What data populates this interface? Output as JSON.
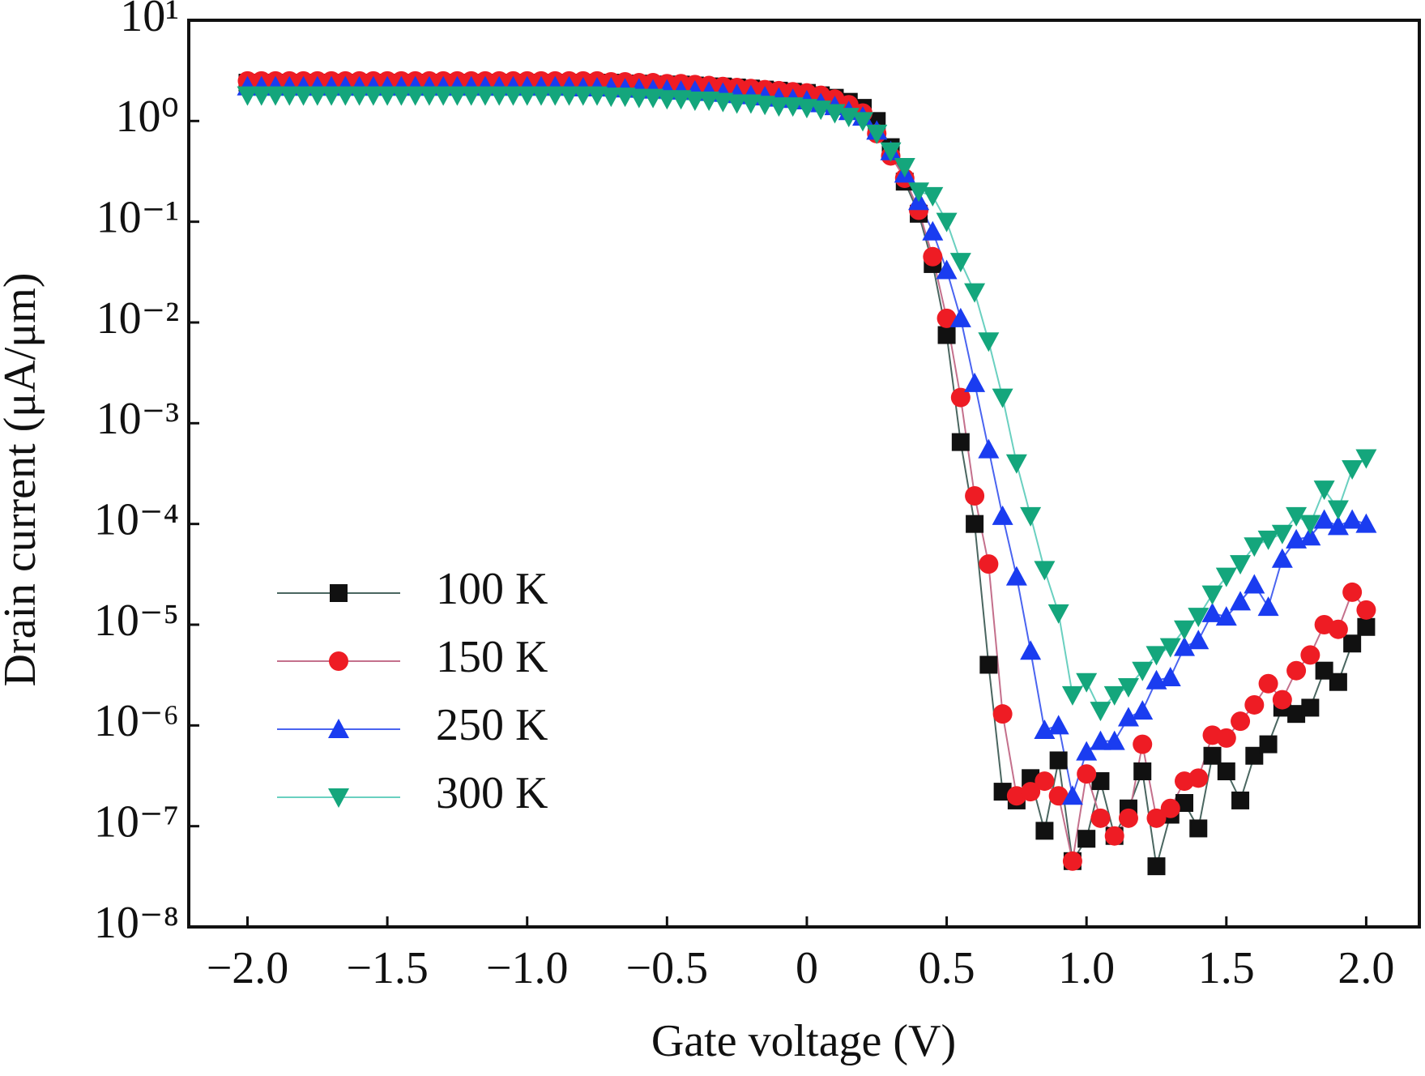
{
  "chart_data": {
    "type": "line",
    "x_label": "Gate voltage (V)",
    "y_label": "Drain current (μA/μm)",
    "log_y": true,
    "grid": false,
    "legend_position": "lower-left",
    "xlim": [
      -2.21,
      2.19
    ],
    "ylim": [
      1e-08,
      10
    ],
    "xticks": [
      {
        "value": -2,
        "label": "−2.0"
      },
      {
        "value": -1.5,
        "label": "−1.5"
      },
      {
        "value": -1,
        "label": "−1.0"
      },
      {
        "value": -0.5,
        "label": "−0.5"
      },
      0,
      0.5,
      {
        "value": 1,
        "label": "1.0"
      },
      1.5,
      {
        "value": 2,
        "label": "2.0"
      }
    ],
    "yticks": [
      {
        "value": 1e-08,
        "label": "10⁻⁸"
      },
      {
        "value": 1e-07,
        "label": "10⁻⁷"
      },
      {
        "value": 1e-06,
        "label": "10⁻⁶"
      },
      {
        "value": 1e-05,
        "label": "10⁻⁵"
      },
      {
        "value": 0.0001,
        "label": "10⁻⁴"
      },
      {
        "value": 0.001,
        "label": "10⁻³"
      },
      {
        "value": 0.01,
        "label": "10⁻²"
      },
      {
        "value": 0.1,
        "label": "10⁻¹"
      },
      {
        "value": 1,
        "label": "10⁰"
      },
      {
        "value": 10,
        "label": "10¹"
      }
    ],
    "x": [
      -2,
      -1.95,
      -1.9,
      -1.85,
      -1.8,
      -1.75,
      -1.7,
      -1.65,
      -1.6,
      -1.55,
      -1.5,
      -1.45,
      -1.4,
      -1.35,
      -1.3,
      -1.25,
      -1.2,
      -1.15,
      -1.1,
      -1.05,
      -1,
      -0.95,
      -0.9,
      -0.85,
      -0.8,
      -0.75,
      -0.7,
      -0.65,
      -0.6,
      -0.55,
      -0.5,
      -0.45,
      -0.4,
      -0.35,
      -0.3,
      -0.25,
      -0.2,
      -0.15,
      -0.1,
      -0.05,
      0,
      0.05,
      0.1,
      0.15,
      0.2,
      0.25,
      0.3,
      0.35,
      0.4,
      0.45,
      0.5,
      0.55,
      0.6,
      0.65,
      0.7,
      0.75,
      0.8,
      0.85,
      0.9,
      0.95,
      1,
      1.05,
      1.1,
      1.15,
      1.2,
      1.25,
      1.3,
      1.35,
      1.4,
      1.45,
      1.5,
      1.55,
      1.6,
      1.65,
      1.7,
      1.75,
      1.8,
      1.85,
      1.9,
      1.95,
      2
    ],
    "series": [
      {
        "name": "100 K",
        "color": "#111111",
        "line_color": "#4a6660",
        "marker": "square",
        "values": [
          2.4,
          2.4,
          2.4,
          2.4,
          2.4,
          2.4,
          2.4,
          2.4,
          2.4,
          2.4,
          2.4,
          2.4,
          2.4,
          2.4,
          2.4,
          2.4,
          2.4,
          2.4,
          2.4,
          2.4,
          2.4,
          2.4,
          2.4,
          2.4,
          2.4,
          2.4,
          2.4,
          2.35,
          2.35,
          2.3,
          2.3,
          2.3,
          2.25,
          2.2,
          2.2,
          2.15,
          2.1,
          2.05,
          2.0,
          1.95,
          1.9,
          1.8,
          1.7,
          1.55,
          1.35,
          1.0,
          0.55,
          0.25,
          0.12,
          0.038,
          0.0075,
          0.00065,
          0.0001,
          4e-06,
          2.2e-07,
          1.8e-07,
          3e-07,
          9e-08,
          4.5e-07,
          4.5e-08,
          7.5e-08,
          2.8e-07,
          8e-08,
          1.5e-07,
          3.5e-07,
          4e-08,
          1.3e-07,
          1.7e-07,
          9.5e-08,
          5e-07,
          3.5e-07,
          1.8e-07,
          5e-07,
          6.5e-07,
          1.5e-06,
          1.3e-06,
          1.5e-06,
          3.5e-06,
          2.7e-06,
          6.5e-06,
          9.5e-06
        ]
      },
      {
        "name": "150 K",
        "color": "#ee1c24",
        "line_color": "#c4708c",
        "marker": "circle",
        "values": [
          2.5,
          2.5,
          2.5,
          2.5,
          2.5,
          2.5,
          2.5,
          2.5,
          2.5,
          2.5,
          2.5,
          2.5,
          2.5,
          2.5,
          2.5,
          2.5,
          2.5,
          2.5,
          2.5,
          2.5,
          2.5,
          2.5,
          2.5,
          2.5,
          2.5,
          2.5,
          2.45,
          2.45,
          2.4,
          2.4,
          2.35,
          2.35,
          2.3,
          2.25,
          2.2,
          2.15,
          2.1,
          2.05,
          2.0,
          1.95,
          1.9,
          1.8,
          1.65,
          1.45,
          1.2,
          0.75,
          0.45,
          0.27,
          0.13,
          0.045,
          0.011,
          0.0018,
          0.00019,
          4e-05,
          1.3e-06,
          2e-07,
          2.2e-07,
          2.8e-07,
          2e-07,
          4.5e-08,
          3.3e-07,
          1.2e-07,
          8e-08,
          1.2e-07,
          6.5e-07,
          1.2e-07,
          1.5e-07,
          2.8e-07,
          3e-07,
          8e-07,
          7.5e-07,
          1.1e-06,
          1.6e-06,
          2.6e-06,
          1.8e-06,
          3.5e-06,
          5e-06,
          1e-05,
          9e-06,
          2.1e-05,
          1.4e-05
        ]
      },
      {
        "name": "250 K",
        "color": "#1a3cf0",
        "line_color": "#4a64f0",
        "marker": "triangle-up",
        "values": [
          2.2,
          2.2,
          2.2,
          2.2,
          2.2,
          2.2,
          2.2,
          2.2,
          2.2,
          2.2,
          2.2,
          2.2,
          2.2,
          2.2,
          2.2,
          2.2,
          2.2,
          2.2,
          2.2,
          2.2,
          2.2,
          2.2,
          2.2,
          2.2,
          2.15,
          2.15,
          2.15,
          2.1,
          2.1,
          2.05,
          2.05,
          2.0,
          2.0,
          1.95,
          1.9,
          1.85,
          1.8,
          1.75,
          1.7,
          1.65,
          1.6,
          1.5,
          1.4,
          1.25,
          1.1,
          0.8,
          0.5,
          0.3,
          0.16,
          0.08,
          0.033,
          0.011,
          0.0025,
          0.00055,
          0.00012,
          3e-05,
          5.5e-06,
          9e-07,
          1e-06,
          2e-07,
          5.5e-07,
          7e-07,
          7e-07,
          1.2e-06,
          1.4e-06,
          2.8e-06,
          3e-06,
          6e-06,
          7e-06,
          1.3e-05,
          1.2e-05,
          1.7e-05,
          2.5e-05,
          1.5e-05,
          4.5e-05,
          7e-05,
          7.5e-05,
          0.00011,
          9.5e-05,
          0.00011,
          0.0001
        ]
      },
      {
        "name": "300 K",
        "color": "#14a67c",
        "line_color": "#6ad0c0",
        "marker": "triangle-down",
        "values": [
          1.8,
          1.8,
          1.8,
          1.8,
          1.8,
          1.8,
          1.8,
          1.8,
          1.8,
          1.8,
          1.8,
          1.8,
          1.8,
          1.8,
          1.8,
          1.8,
          1.8,
          1.8,
          1.8,
          1.8,
          1.8,
          1.8,
          1.8,
          1.8,
          1.8,
          1.8,
          1.75,
          1.75,
          1.7,
          1.7,
          1.65,
          1.65,
          1.6,
          1.6,
          1.55,
          1.5,
          1.5,
          1.45,
          1.4,
          1.4,
          1.35,
          1.3,
          1.2,
          1.1,
          1.0,
          0.75,
          0.5,
          0.35,
          0.2,
          0.18,
          0.1,
          0.04,
          0.02,
          0.0065,
          0.0018,
          0.0004,
          0.00012,
          3.5e-05,
          1.3e-05,
          2e-06,
          2.7e-06,
          1.4e-06,
          2e-06,
          2.4e-06,
          3.5e-06,
          5e-06,
          6e-06,
          9e-06,
          1.2e-05,
          2e-05,
          3e-05,
          4e-05,
          6e-05,
          7e-05,
          8e-05,
          0.00012,
          0.0001,
          0.00022,
          0.00014,
          0.00035,
          0.00045
        ]
      }
    ]
  }
}
